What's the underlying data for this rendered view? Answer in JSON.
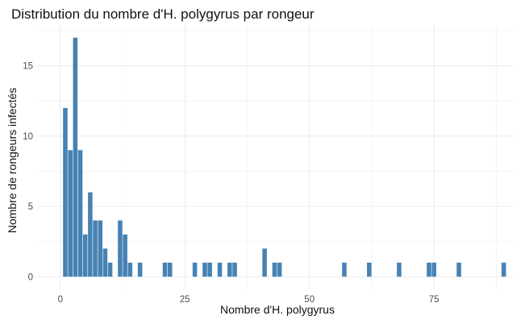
{
  "chart_data": {
    "type": "bar",
    "title": "Distribution du nombre d'H. polygyrus par rongeur",
    "xlabel": "Nombre d'H. polygyrus",
    "ylabel": "Nombre de rongeurs infectés",
    "xlim": [
      -4.5,
      91
    ],
    "ylim": [
      -0.9,
      17.9
    ],
    "x_ticks": [
      0,
      25,
      50,
      75
    ],
    "y_ticks": [
      0,
      5,
      10,
      15
    ],
    "grid": true,
    "bar_color": "#4682b4",
    "x": [
      1,
      2,
      3,
      4,
      5,
      6,
      7,
      8,
      9,
      10,
      12,
      13,
      14,
      16,
      21,
      22,
      27,
      29,
      30,
      32,
      34,
      35,
      41,
      43,
      44,
      57,
      62,
      68,
      74,
      75,
      80,
      89
    ],
    "values": [
      12,
      9,
      17,
      9,
      3,
      6,
      4,
      4,
      2,
      1,
      4,
      3,
      1,
      1,
      1,
      1,
      1,
      1,
      1,
      1,
      1,
      1,
      2,
      1,
      1,
      1,
      1,
      1,
      1,
      1,
      1,
      1
    ]
  }
}
